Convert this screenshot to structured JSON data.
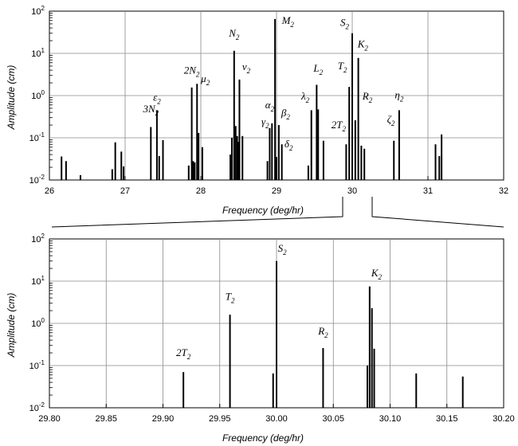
{
  "chart_data": [
    {
      "type": "bar",
      "xlabel": "Frequency (deg/hr)",
      "ylabel": "Amplitude (cm)",
      "xlim": [
        26,
        32
      ],
      "ylim": [
        0.01,
        100
      ],
      "yscale": "log",
      "grid": true,
      "x_ticks": [
        "26",
        "27",
        "28",
        "29",
        "30",
        "31",
        "32"
      ],
      "y_ticks": [
        {
          "base": "10",
          "exp": "-2"
        },
        {
          "base": "10",
          "exp": "-1"
        },
        {
          "base": "10",
          "exp": "0"
        },
        {
          "base": "10",
          "exp": "1"
        },
        {
          "base": "10",
          "exp": "2"
        }
      ],
      "bars": [
        {
          "x": 26.16,
          "y": 0.036
        },
        {
          "x": 26.22,
          "y": 0.028
        },
        {
          "x": 26.41,
          "y": 0.013
        },
        {
          "x": 26.83,
          "y": 0.018
        },
        {
          "x": 26.87,
          "y": 0.078
        },
        {
          "x": 26.95,
          "y": 0.047
        },
        {
          "x": 26.98,
          "y": 0.021
        },
        {
          "x": 27.34,
          "y": 0.18
        },
        {
          "x": 27.42,
          "y": 0.45
        },
        {
          "x": 27.45,
          "y": 0.037
        },
        {
          "x": 27.5,
          "y": 0.088
        },
        {
          "x": 27.84,
          "y": 0.022
        },
        {
          "x": 27.88,
          "y": 1.55
        },
        {
          "x": 27.9,
          "y": 0.028
        },
        {
          "x": 27.92,
          "y": 0.026
        },
        {
          "x": 27.95,
          "y": 1.9
        },
        {
          "x": 27.97,
          "y": 0.13
        },
        {
          "x": 28.02,
          "y": 0.06
        },
        {
          "x": 28.39,
          "y": 0.04
        },
        {
          "x": 28.41,
          "y": 0.1
        },
        {
          "x": 28.44,
          "y": 11.5
        },
        {
          "x": 28.46,
          "y": 0.19
        },
        {
          "x": 28.48,
          "y": 0.11
        },
        {
          "x": 28.5,
          "y": 0.08
        },
        {
          "x": 28.51,
          "y": 2.4
        },
        {
          "x": 28.55,
          "y": 0.11
        },
        {
          "x": 28.88,
          "y": 0.028
        },
        {
          "x": 28.91,
          "y": 0.17
        },
        {
          "x": 28.94,
          "y": 0.22
        },
        {
          "x": 28.98,
          "y": 65
        },
        {
          "x": 29.0,
          "y": 0.035
        },
        {
          "x": 29.03,
          "y": 0.2
        },
        {
          "x": 29.07,
          "y": 0.07
        },
        {
          "x": 29.42,
          "y": 0.022
        },
        {
          "x": 29.46,
          "y": 0.45
        },
        {
          "x": 29.53,
          "y": 1.8
        },
        {
          "x": 29.55,
          "y": 0.47
        },
        {
          "x": 29.62,
          "y": 0.085
        },
        {
          "x": 29.92,
          "y": 0.07
        },
        {
          "x": 29.96,
          "y": 1.6
        },
        {
          "x": 30.0,
          "y": 30
        },
        {
          "x": 30.04,
          "y": 0.26
        },
        {
          "x": 30.08,
          "y": 7.8
        },
        {
          "x": 30.12,
          "y": 0.065
        },
        {
          "x": 30.16,
          "y": 0.055
        },
        {
          "x": 30.55,
          "y": 0.085
        },
        {
          "x": 30.62,
          "y": 0.45
        },
        {
          "x": 31.1,
          "y": 0.07
        },
        {
          "x": 31.15,
          "y": 0.037
        },
        {
          "x": 31.18,
          "y": 0.12
        }
      ],
      "labels": [
        {
          "base": "3N",
          "sub": "2",
          "x": 27.34,
          "y": 0.4
        },
        {
          "base": "ε",
          "sub": "2",
          "x": 27.42,
          "y": 0.75
        },
        {
          "base": "2N",
          "sub": "2",
          "x": 27.88,
          "y": 3.3
        },
        {
          "base": "μ",
          "sub": "2",
          "x": 28.06,
          "y": 2.1
        },
        {
          "base": "N",
          "sub": "2",
          "x": 28.44,
          "y": 25
        },
        {
          "base": "ν",
          "sub": "2",
          "x": 28.6,
          "y": 4.0
        },
        {
          "base": "α",
          "sub": "2",
          "x": 28.91,
          "y": 0.5
        },
        {
          "base": "γ",
          "sub": "2",
          "x": 28.85,
          "y": 0.2
        },
        {
          "base": "β",
          "sub": "2",
          "x": 29.12,
          "y": 0.32
        },
        {
          "base": "δ",
          "sub": "2",
          "x": 29.16,
          "y": 0.06
        },
        {
          "base": "M",
          "sub": "2",
          "x": 29.15,
          "y": 50
        },
        {
          "base": "λ",
          "sub": "2",
          "x": 29.38,
          "y": 0.8
        },
        {
          "base": "L",
          "sub": "2",
          "x": 29.55,
          "y": 3.7
        },
        {
          "base": "2T",
          "sub": "2",
          "x": 29.82,
          "y": 0.17
        },
        {
          "base": "T",
          "sub": "2",
          "x": 29.87,
          "y": 4.2
        },
        {
          "base": "S",
          "sub": "2",
          "x": 29.9,
          "y": 45
        },
        {
          "base": "K",
          "sub": "2",
          "x": 30.14,
          "y": 14
        },
        {
          "base": "R",
          "sub": "2",
          "x": 30.2,
          "y": 0.8
        },
        {
          "base": "ζ",
          "sub": "2",
          "x": 30.51,
          "y": 0.23
        },
        {
          "base": "η",
          "sub": "2",
          "x": 30.62,
          "y": 0.85
        }
      ]
    },
    {
      "type": "bar",
      "xlabel": "Frequency (deg/hr)",
      "ylabel": "Amplitude (cm)",
      "xlim": [
        29.8,
        30.2
      ],
      "ylim": [
        0.01,
        100
      ],
      "yscale": "log",
      "grid": true,
      "x_ticks": [
        "29.80",
        "29.85",
        "29.90",
        "29.95",
        "30.00",
        "30.05",
        "30.10",
        "30.15",
        "30.20"
      ],
      "y_ticks": [
        {
          "base": "10",
          "exp": "-2"
        },
        {
          "base": "10",
          "exp": "-1"
        },
        {
          "base": "10",
          "exp": "0"
        },
        {
          "base": "10",
          "exp": "1"
        },
        {
          "base": "10",
          "exp": "2"
        }
      ],
      "bars": [
        {
          "x": 29.918,
          "y": 0.07
        },
        {
          "x": 29.959,
          "y": 1.6
        },
        {
          "x": 29.997,
          "y": 0.065
        },
        {
          "x": 30.0,
          "y": 30
        },
        {
          "x": 30.041,
          "y": 0.26
        },
        {
          "x": 30.08,
          "y": 0.1
        },
        {
          "x": 30.082,
          "y": 7.5
        },
        {
          "x": 30.084,
          "y": 2.3
        },
        {
          "x": 30.086,
          "y": 0.25
        },
        {
          "x": 30.123,
          "y": 0.065
        },
        {
          "x": 30.164,
          "y": 0.055
        }
      ],
      "labels": [
        {
          "base": "2T",
          "sub": "2",
          "x": 29.918,
          "y": 0.17
        },
        {
          "base": "T",
          "sub": "2",
          "x": 29.959,
          "y": 3.6
        },
        {
          "base": "S",
          "sub": "2",
          "x": 30.005,
          "y": 50
        },
        {
          "base": "R",
          "sub": "2",
          "x": 30.041,
          "y": 0.55
        },
        {
          "base": "K",
          "sub": "2",
          "x": 30.088,
          "y": 13
        }
      ]
    }
  ]
}
